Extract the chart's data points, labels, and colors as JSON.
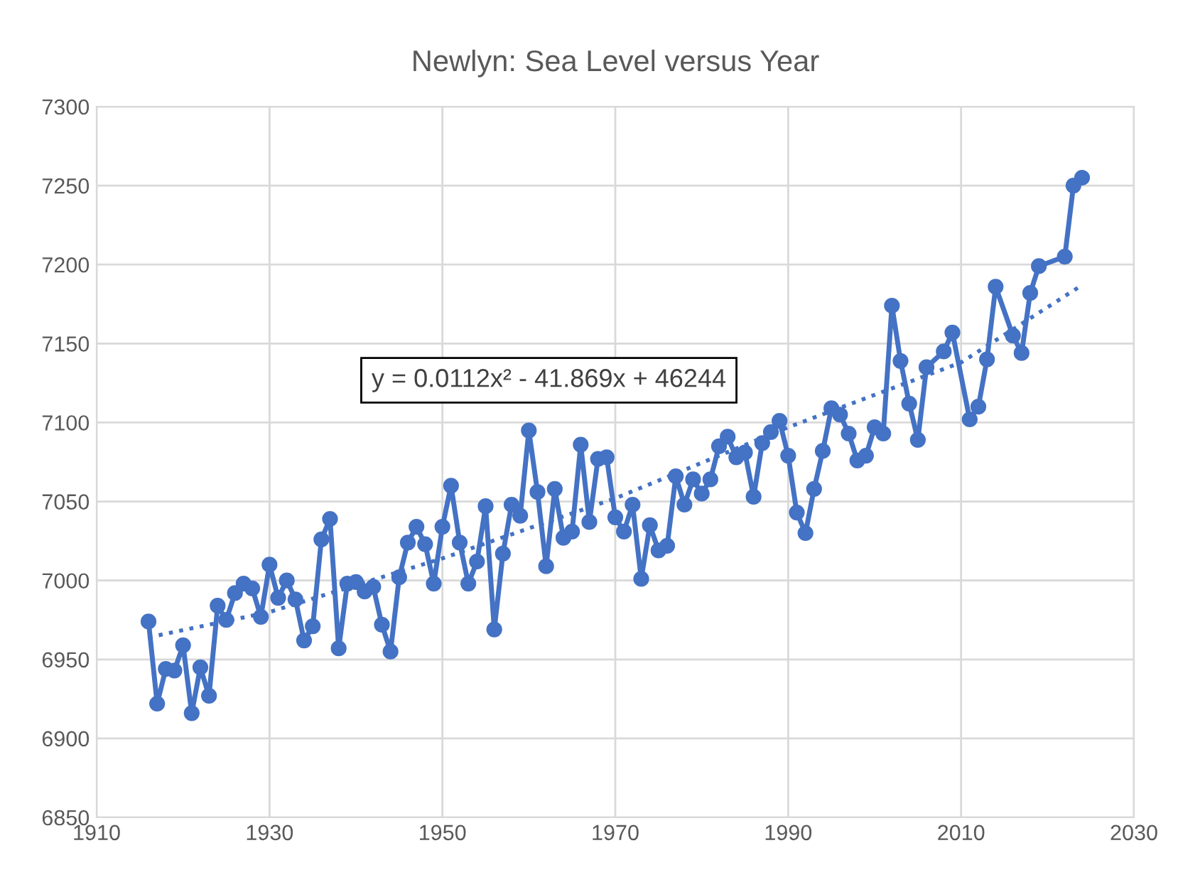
{
  "chart_data": {
    "type": "line",
    "title": "Newlyn: Sea Level versus Year",
    "xlim": [
      1910,
      2030
    ],
    "xticks": [
      1910,
      1930,
      1950,
      1970,
      1990,
      2010,
      2030
    ],
    "ylim": [
      6850,
      7300
    ],
    "yticks": [
      6850,
      6900,
      6950,
      7000,
      7050,
      7100,
      7150,
      7200,
      7250,
      7300
    ],
    "grid": true,
    "annotations": [
      "y = 0.0112x² - 41.869x + 46244"
    ],
    "series": [
      {
        "color": "#4472c4",
        "marker": "circle",
        "line_style": "solid",
        "x": [
          1916,
          1917,
          1918,
          1919,
          1920,
          1921,
          1922,
          1923,
          1924,
          1925,
          1926,
          1927,
          1928,
          1929,
          1930,
          1931,
          1932,
          1933,
          1934,
          1935,
          1936,
          1937,
          1938,
          1939,
          1940,
          1941,
          1942,
          1943,
          1944,
          1945,
          1946,
          1947,
          1948,
          1949,
          1950,
          1951,
          1952,
          1953,
          1954,
          1955,
          1956,
          1957,
          1958,
          1959,
          1960,
          1961,
          1962,
          1963,
          1964,
          1965,
          1966,
          1967,
          1968,
          1969,
          1970,
          1971,
          1972,
          1973,
          1974,
          1975,
          1976,
          1977,
          1978,
          1979,
          1980,
          1981,
          1982,
          1983,
          1984,
          1985,
          1986,
          1987,
          1988,
          1989,
          1990,
          1991,
          1992,
          1993,
          1994,
          1995,
          1996,
          1997,
          1998,
          1999,
          2000,
          2001,
          2002,
          2003,
          2004,
          2005,
          2006,
          2008,
          2009,
          2011,
          2012,
          2013,
          2014,
          2016,
          2017,
          2018,
          2019,
          2022,
          2023,
          2024
        ],
        "values": [
          6974,
          6922,
          6944,
          6943,
          6959,
          6916,
          6945,
          6927,
          6984,
          6975,
          6992,
          6998,
          6995,
          6977,
          7010,
          6989,
          7000,
          6988,
          6962,
          6971,
          7026,
          7039,
          6957,
          6998,
          6999,
          6993,
          6996,
          6972,
          6955,
          7002,
          7024,
          7034,
          7023,
          6998,
          7034,
          7060,
          7024,
          6998,
          7012,
          7047,
          6969,
          7017,
          7048,
          7041,
          7095,
          7056,
          7009,
          7058,
          7027,
          7031,
          7086,
          7037,
          7077,
          7078,
          7040,
          7031,
          7048,
          7001,
          7035,
          7019,
          7022,
          7066,
          7048,
          7064,
          7055,
          7064,
          7085,
          7091,
          7078,
          7081,
          7053,
          7087,
          7094,
          7101,
          7079,
          7043,
          7030,
          7058,
          7082,
          7109,
          7105,
          7093,
          7076,
          7079,
          7097,
          7093,
          7174,
          7139,
          7112,
          7089,
          7135,
          7145,
          7157,
          7102,
          7110,
          7140,
          7186,
          7155,
          7144,
          7182,
          7199,
          7205,
          7250,
          7255
        ]
      },
      {
        "color": "#4472c4",
        "marker": "none",
        "line_style": "dotted",
        "x": [
          1916,
          1930,
          1950,
          1970,
          1990,
          2010,
          2024
        ],
        "values": [
          6964,
          6980,
          7014,
          7052,
          7097,
          7138,
          7187
        ]
      }
    ]
  }
}
